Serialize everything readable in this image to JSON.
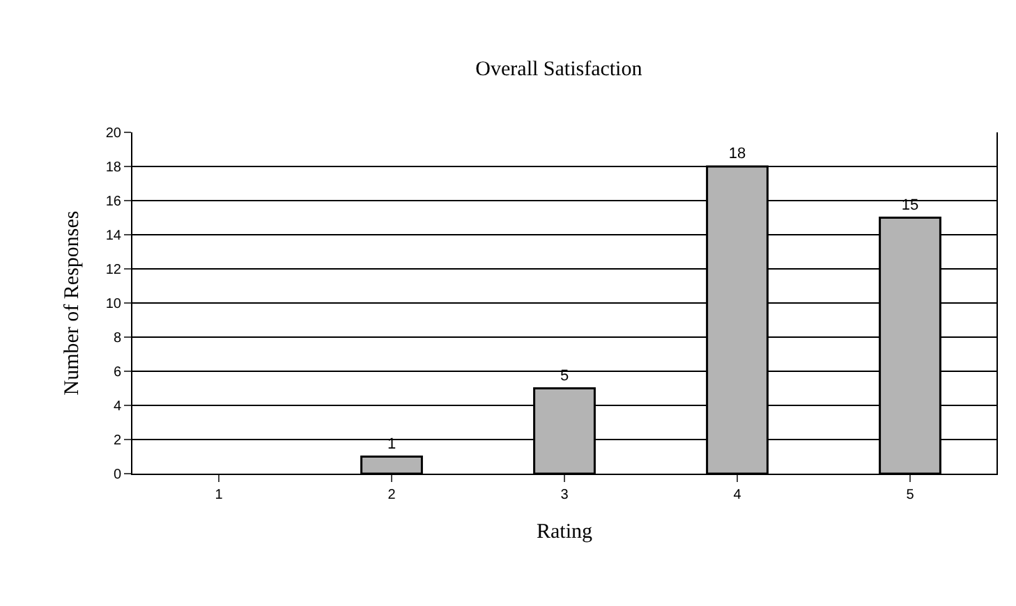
{
  "chart_data": {
    "type": "bar",
    "title": "Overall Satisfaction",
    "xlabel": "Rating",
    "ylabel": "Number of Responses",
    "categories": [
      "1",
      "2",
      "3",
      "4",
      "5"
    ],
    "values": [
      0,
      1,
      5,
      18,
      15
    ],
    "value_labels": [
      null,
      "1",
      "5",
      "18",
      "15"
    ],
    "color": "#b4b4b4",
    "ylim": [
      0,
      20
    ],
    "yticks": [
      0,
      2,
      4,
      6,
      8,
      10,
      12,
      14,
      16,
      18,
      20
    ],
    "grid": "y",
    "legend": false
  }
}
